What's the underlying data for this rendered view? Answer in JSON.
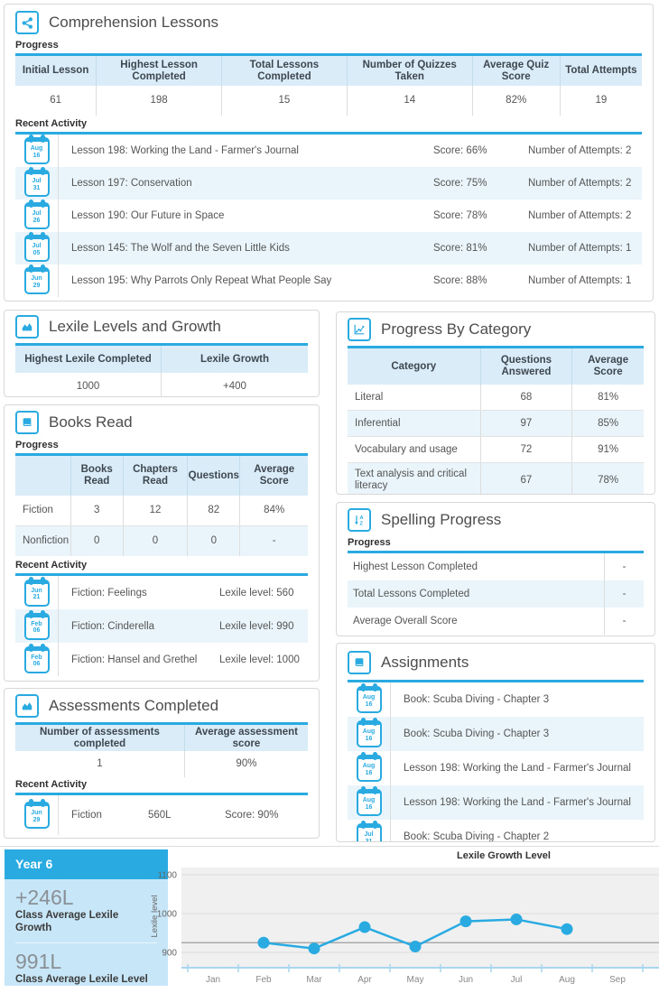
{
  "colors": {
    "accent": "#29abe2",
    "row_alt": "#e9f5fb",
    "header_bg": "#d9ecf7"
  },
  "comprehension": {
    "icon": "share-icon",
    "title": "Comprehension Lessons",
    "progress_label": "Progress",
    "recent_label": "Recent Activity",
    "table": {
      "headers": [
        "Initial Lesson",
        "Highest Lesson Completed",
        "Total Lessons Completed",
        "Number of Quizzes Taken",
        "Average Quiz Score",
        "Total Attempts"
      ],
      "values": [
        "61",
        "198",
        "15",
        "14",
        "82%",
        "19"
      ]
    },
    "activities": [
      {
        "month": "Aug",
        "day": "16",
        "title": "Lesson 198: Working the Land - Farmer's Journal",
        "score": "Score: 66%",
        "attempts": "Number of Attempts: 2"
      },
      {
        "month": "Jul",
        "day": "31",
        "title": "Lesson 197: Conservation",
        "score": "Score: 75%",
        "attempts": "Number of Attempts: 2"
      },
      {
        "month": "Jul",
        "day": "26",
        "title": "Lesson 190: Our Future in Space",
        "score": "Score: 78%",
        "attempts": "Number of Attempts: 2"
      },
      {
        "month": "Jul",
        "day": "05",
        "title": "Lesson 145: The Wolf and the Seven Little Kids",
        "score": "Score: 81%",
        "attempts": "Number of Attempts: 1"
      },
      {
        "month": "Jun",
        "day": "29",
        "title": "Lesson 195: Why Parrots Only Repeat What People Say",
        "score": "Score: 88%",
        "attempts": "Number of Attempts: 1"
      }
    ]
  },
  "lexile": {
    "icon": "area-chart-icon",
    "title": "Lexile Levels and Growth",
    "headers": [
      "Highest Lexile Completed",
      "Lexile Growth"
    ],
    "values": [
      "1000",
      "+400"
    ]
  },
  "category": {
    "icon": "line-chart-icon",
    "title": "Progress By Category",
    "headers": [
      "Category",
      "Questions Answered",
      "Average Score"
    ],
    "rows": [
      [
        "Literal",
        "68",
        "81%"
      ],
      [
        "Inferential",
        "97",
        "85%"
      ],
      [
        "Vocabulary and usage",
        "72",
        "91%"
      ],
      [
        "Text analysis and critical literacy",
        "67",
        "78%"
      ]
    ]
  },
  "books": {
    "icon": "book-icon",
    "title": "Books Read",
    "progress_label": "Progress",
    "recent_label": "Recent Activity",
    "headers": [
      "",
      "Books Read",
      "Chapters Read",
      "Questions",
      "Average Score"
    ],
    "rows": [
      [
        "Fiction",
        "3",
        "12",
        "82",
        "84%"
      ],
      [
        "Nonfiction",
        "0",
        "0",
        "0",
        "-"
      ]
    ],
    "activities": [
      {
        "month": "Jun",
        "day": "21",
        "title": "Fiction: Feelings",
        "lexile": "Lexile level: 560"
      },
      {
        "month": "Feb",
        "day": "06",
        "title": "Fiction: Cinderella",
        "lexile": "Lexile level: 990"
      },
      {
        "month": "Feb",
        "day": "06",
        "title": "Fiction: Hansel and Grethel",
        "lexile": "Lexile level: 1000"
      }
    ]
  },
  "spelling": {
    "icon": "sort-alpha-icon",
    "title": "Spelling Progress",
    "progress_label": "Progress",
    "rows": [
      {
        "label": "Highest Lesson Completed",
        "value": "-"
      },
      {
        "label": "Total Lessons Completed",
        "value": "-"
      },
      {
        "label": "Average Overall Score",
        "value": "-"
      }
    ]
  },
  "assessments": {
    "icon": "area-chart-icon",
    "title": "Assessments Completed",
    "recent_label": "Recent Activity",
    "headers": [
      "Number of assessments completed",
      "Average assessment score"
    ],
    "values": [
      "1",
      "90%"
    ],
    "activity": {
      "month": "Jun",
      "day": "29",
      "type": "Fiction",
      "lexile": "560L",
      "score": "Score: 90%"
    }
  },
  "assignments": {
    "icon": "book-icon",
    "title": "Assignments",
    "items": [
      {
        "month": "Aug",
        "day": "16",
        "title": "Book: Scuba Diving - Chapter 3"
      },
      {
        "month": "Aug",
        "day": "16",
        "title": "Book: Scuba Diving - Chapter 3"
      },
      {
        "month": "Aug",
        "day": "16",
        "title": "Lesson 198: Working the Land - Farmer's Journal"
      },
      {
        "month": "Aug",
        "day": "16",
        "title": "Lesson 198: Working the Land - Farmer's Journal"
      },
      {
        "month": "Jul",
        "day": "31",
        "title": "Book: Scuba Diving - Chapter 2"
      }
    ]
  },
  "year_summary": {
    "year": "Year 6",
    "growth_value": "+246L",
    "growth_label": "Class Average Lexile Growth",
    "level_value": "991L",
    "level_label": "Class Average Lexile Level"
  },
  "chart_data": {
    "type": "line",
    "title": "Lexile Growth Level",
    "ylabel": "Lexile level",
    "categories": [
      "Jan",
      "Feb",
      "Mar",
      "Apr",
      "May",
      "Jun",
      "Jul",
      "Aug",
      "Sep"
    ],
    "values": [
      null,
      925,
      910,
      965,
      915,
      980,
      985,
      960,
      null
    ],
    "yticks": [
      900,
      1000,
      1100
    ],
    "ylim": [
      860,
      1120
    ],
    "baseline": 925,
    "line_color": "#29abe2",
    "grid": true,
    "legend": false
  }
}
